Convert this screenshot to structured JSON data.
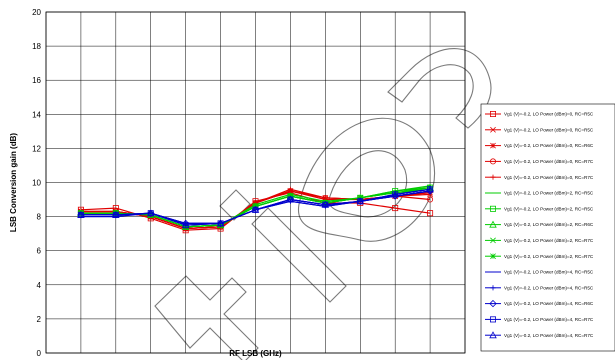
{
  "chart_data": {
    "type": "line",
    "title": "",
    "xlabel": "RF LSB (GHz)",
    "ylabel": "LSB Conversion gain (dB)",
    "xlim": [
      19,
      31
    ],
    "ylim": [
      0,
      20
    ],
    "xticks": [
      19,
      20,
      21,
      22,
      23,
      24,
      25,
      26,
      27,
      28,
      29,
      30,
      31
    ],
    "yticks": [
      0,
      2,
      4,
      6,
      8,
      10,
      12,
      14,
      16,
      18,
      20
    ],
    "grid": true,
    "legend_position": "right",
    "x": [
      20,
      21,
      22,
      23,
      24,
      25,
      26,
      27,
      28,
      29,
      30
    ],
    "series": [
      {
        "name": "Vg1 (V)=-0.2, LO Power (dBm)=0, RC=R5C",
        "color": "#e00000",
        "marker": "square",
        "values": [
          8.4,
          8.5,
          7.9,
          7.2,
          7.3,
          8.9,
          9.4,
          8.8,
          8.8,
          8.5,
          8.2
        ]
      },
      {
        "name": "Vg1 (V)=-0.2, LO Power (dBm)=0, RC=R5C",
        "color": "#e00000",
        "marker": "x",
        "values": [
          8.3,
          8.3,
          8.0,
          7.3,
          7.4,
          8.8,
          9.5,
          9.0,
          9.0,
          9.2,
          9.3
        ]
      },
      {
        "name": "Vg1 (V)=-0.2, LO Power (dBm)=0, RC=R6C",
        "color": "#e00000",
        "marker": "star",
        "values": [
          8.3,
          8.3,
          8.0,
          7.3,
          7.4,
          8.8,
          9.5,
          9.1,
          9.0,
          9.2,
          9.4
        ]
      },
      {
        "name": "Vg1 (V)=-0.2, LO Power (dBm)=0, RC=R7C",
        "color": "#e00000",
        "marker": "circle",
        "values": [
          8.3,
          8.3,
          8.0,
          7.3,
          7.4,
          8.8,
          9.5,
          9.1,
          9.0,
          9.2,
          9.0
        ]
      },
      {
        "name": "Vg1 (V)=-0.2, LO Power (dBm)=0, RC=R7C",
        "color": "#e00000",
        "marker": "plus",
        "values": [
          8.3,
          8.3,
          8.0,
          7.3,
          7.4,
          8.8,
          9.6,
          9.1,
          9.0,
          9.2,
          9.4
        ]
      },
      {
        "name": "Vg1 (V)=-0.2, LO Power (dBm)=2, RC=R5C",
        "color": "#00cc00",
        "marker": "none",
        "values": [
          8.2,
          8.2,
          8.1,
          7.4,
          7.5,
          8.7,
          9.3,
          8.9,
          9.1,
          9.5,
          9.8
        ]
      },
      {
        "name": "Vg1 (V)=-0.2, LO Power (dBm)=2, RC=R5C",
        "color": "#00cc00",
        "marker": "square",
        "values": [
          8.2,
          8.2,
          8.1,
          7.4,
          7.5,
          8.6,
          9.2,
          8.8,
          9.1,
          9.5,
          9.7
        ]
      },
      {
        "name": "Vg1 (V)=-0.2, LO Power (dBm)=2, RC=R6C",
        "color": "#00cc00",
        "marker": "triangle",
        "values": [
          8.2,
          8.2,
          8.1,
          7.4,
          7.5,
          8.6,
          9.2,
          8.8,
          9.1,
          9.4,
          9.7
        ]
      },
      {
        "name": "Vg1 (V)=-0.2, LO Power (dBm)=2, RC=R7C",
        "color": "#00cc00",
        "marker": "x",
        "values": [
          8.2,
          8.2,
          8.1,
          7.4,
          7.5,
          8.6,
          9.2,
          8.8,
          9.1,
          9.4,
          9.6
        ]
      },
      {
        "name": "Vg1 (V)=-0.2, LO Power (dBm)=2, RC=R7C",
        "color": "#00cc00",
        "marker": "star",
        "values": [
          8.2,
          8.2,
          8.1,
          7.4,
          7.5,
          8.6,
          9.2,
          8.8,
          9.1,
          9.4,
          9.6
        ]
      },
      {
        "name": "Vg1 (V)=-0.2, LO Power (dBm)=4, RC=R5C",
        "color": "#0000cc",
        "marker": "none",
        "values": [
          8.0,
          8.0,
          8.2,
          7.6,
          7.6,
          8.4,
          8.9,
          8.6,
          8.9,
          9.2,
          9.5
        ]
      },
      {
        "name": "Vg1 (V)=-0.2, LO Power (dBm)=4, RC=R5C",
        "color": "#0000cc",
        "marker": "plus",
        "values": [
          8.1,
          8.1,
          8.2,
          7.6,
          7.6,
          8.4,
          8.9,
          8.6,
          8.9,
          9.2,
          9.5
        ]
      },
      {
        "name": "Vg1 (V)=-0.2, LO Power (dBm)=4, RC=R6C",
        "color": "#0000cc",
        "marker": "diamond",
        "values": [
          8.1,
          8.1,
          8.2,
          7.6,
          7.6,
          8.4,
          9.0,
          8.7,
          8.9,
          9.2,
          9.5
        ]
      },
      {
        "name": "Vg1 (V)=-0.2, LO Power (dBm)=4, RC=R7C",
        "color": "#0000cc",
        "marker": "square",
        "values": [
          8.1,
          8.1,
          8.2,
          7.5,
          7.6,
          8.4,
          9.0,
          8.7,
          8.9,
          9.3,
          9.6
        ]
      },
      {
        "name": "Vg1 (V)=-0.2, LO Power (dBm)=4, RC=R7C",
        "color": "#0000cc",
        "marker": "triangle",
        "values": [
          8.1,
          8.1,
          8.2,
          7.5,
          7.6,
          8.4,
          9.0,
          8.7,
          8.9,
          9.3,
          9.6
        ]
      }
    ]
  }
}
